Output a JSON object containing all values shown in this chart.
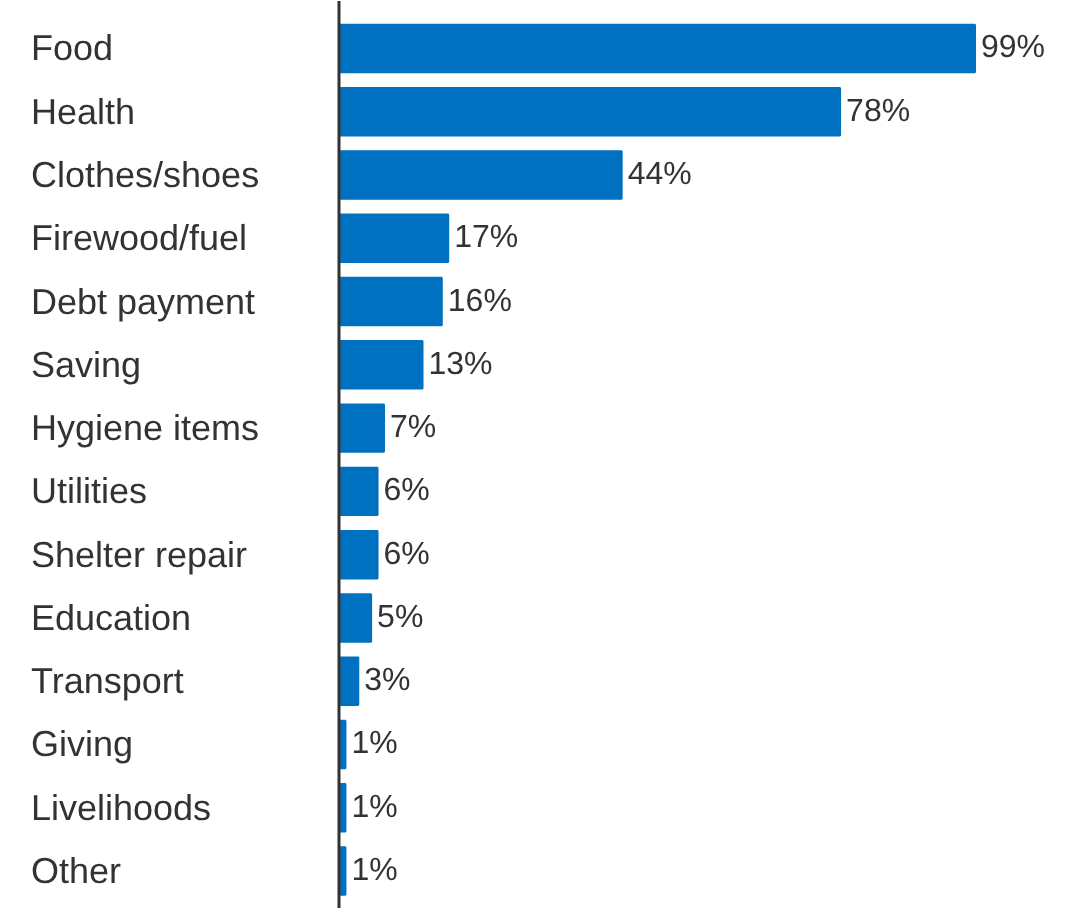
{
  "chart_data": {
    "type": "bar",
    "orientation": "horizontal",
    "categories": [
      "Food",
      "Health",
      "Clothes/shoes",
      "Firewood/fuel",
      "Debt payment",
      "Saving",
      "Hygiene items",
      "Utilities",
      "Shelter repair",
      "Education",
      "Transport",
      "Giving",
      "Livelihoods",
      "Other"
    ],
    "values": [
      99,
      78,
      44,
      17,
      16,
      13,
      7,
      6,
      6,
      5,
      3,
      1,
      1,
      1
    ],
    "value_labels": [
      "99%",
      "78%",
      "44%",
      "17%",
      "16%",
      "13%",
      "7%",
      "6%",
      "6%",
      "5%",
      "3%",
      "1%",
      "1%",
      "1%"
    ],
    "color": "#0070c0"
  }
}
